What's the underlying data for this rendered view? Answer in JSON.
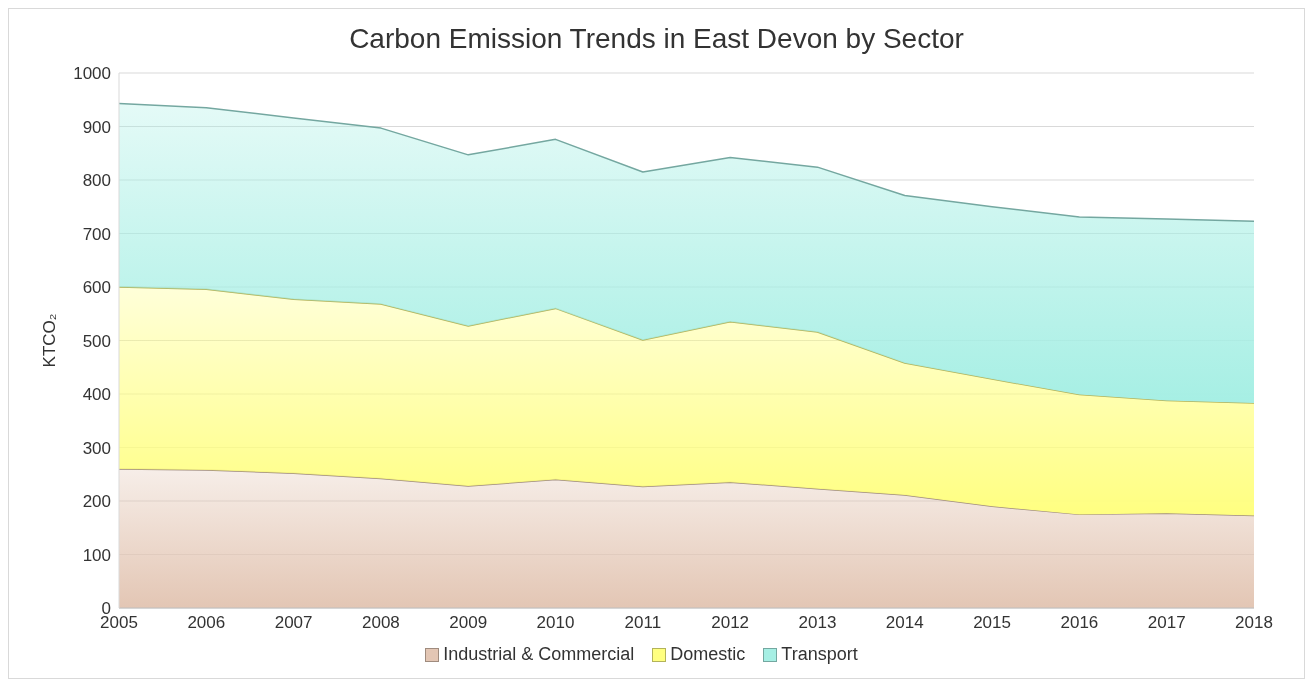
{
  "chart_data": {
    "type": "area",
    "title": "Carbon Emission Trends in East Devon by Sector",
    "ylabel": "KTCO₂",
    "stacked": true,
    "x": [
      2005,
      2006,
      2007,
      2008,
      2009,
      2010,
      2011,
      2012,
      2013,
      2014,
      2015,
      2016,
      2017,
      2018
    ],
    "series": [
      {
        "name": "Industrial & Commercial",
        "color": "#e3c6b4",
        "values": [
          260,
          258,
          252,
          242,
          228,
          240,
          227,
          235,
          223,
          211,
          190,
          175,
          177,
          173
        ]
      },
      {
        "name": "Domestic",
        "color": "#ffff80",
        "values": [
          340,
          338,
          325,
          326,
          299,
          320,
          274,
          300,
          293,
          247,
          238,
          224,
          211,
          210
        ]
      },
      {
        "name": "Transport",
        "color": "#a6efe4",
        "values": [
          343,
          339,
          339,
          329,
          320,
          316,
          314,
          307,
          308,
          313,
          322,
          332,
          339,
          340
        ]
      }
    ],
    "xlim": [
      2005,
      2018
    ],
    "xticks": [
      2005,
      2006,
      2007,
      2008,
      2009,
      2010,
      2011,
      2012,
      2013,
      2014,
      2015,
      2016,
      2017,
      2018
    ],
    "ylim": [
      0,
      1000
    ],
    "yticks": [
      0,
      100,
      200,
      300,
      400,
      500,
      600,
      700,
      800,
      900,
      1000
    ],
    "grid": "y",
    "legend": "bottom"
  }
}
